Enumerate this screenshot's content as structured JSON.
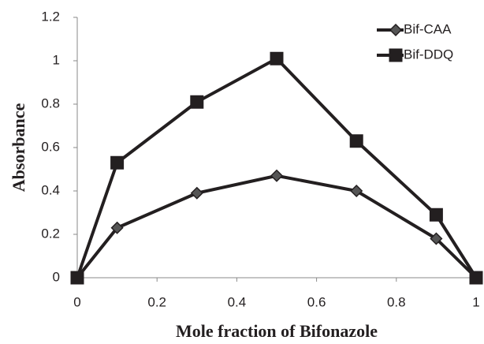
{
  "chart_data": {
    "type": "line",
    "xlabel": "Mole fraction of Bifonazole",
    "ylabel": "Absorbance",
    "series": [
      {
        "name": "Bif-CAA",
        "color": "#231f20",
        "marker": "diamond",
        "marker_color": "#555555",
        "x": [
          0,
          0.1,
          0.3,
          0.5,
          0.7,
          0.9,
          1
        ],
        "values": [
          0,
          0.23,
          0.39,
          0.47,
          0.4,
          0.18,
          0
        ]
      },
      {
        "name": "Bif-DDQ",
        "color": "#231f20",
        "marker": "square",
        "marker_color": "#231f20",
        "x": [
          0,
          0.1,
          0.3,
          0.5,
          0.7,
          0.9,
          1
        ],
        "values": [
          0,
          0.53,
          0.81,
          1.01,
          0.63,
          0.29,
          0
        ]
      }
    ],
    "xlim": [
      0,
      1
    ],
    "xticks": [
      0,
      0.2,
      0.4,
      0.6,
      0.8,
      1
    ],
    "ylim": [
      0,
      1.2
    ],
    "yticks": [
      0,
      0.2,
      0.4,
      0.6,
      0.8,
      1,
      1.2
    ],
    "grid": false,
    "legend": "upper right"
  }
}
